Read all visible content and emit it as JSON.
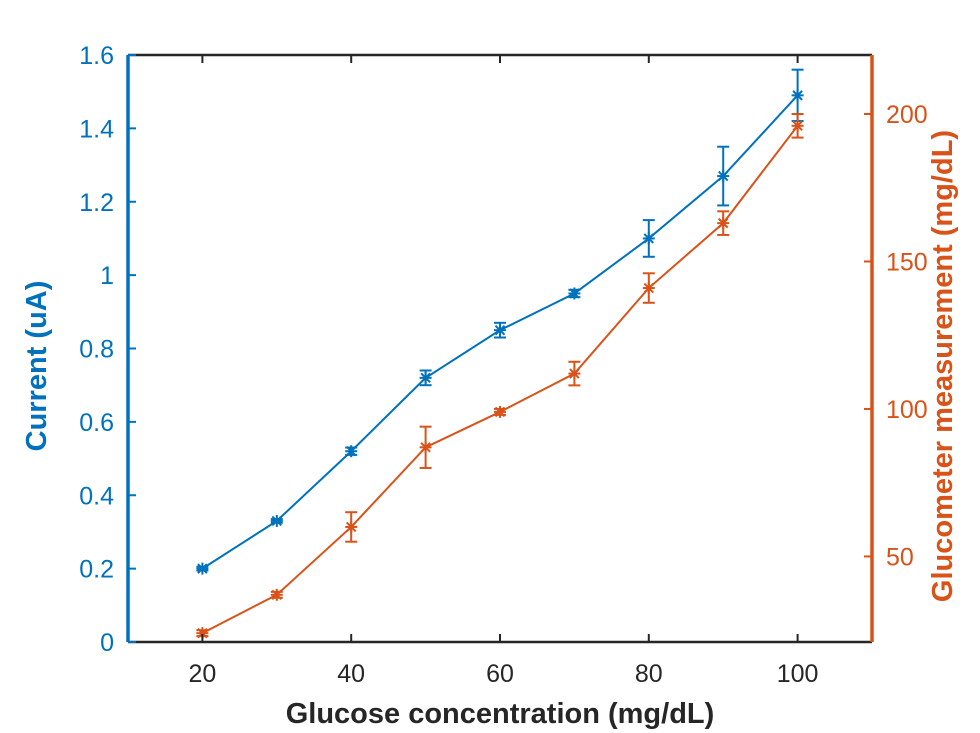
{
  "chart_data": {
    "type": "line",
    "xlabel": "Glucose concentration (mg/dL)",
    "ylabel_left": "Current (uA)",
    "ylabel_right": "Glucometer measurement (mg/dL)",
    "xlim": [
      10,
      110
    ],
    "ylim_left": [
      0,
      1.6
    ],
    "ylim_right": [
      21,
      220
    ],
    "x_ticks": [
      "20",
      "40",
      "60",
      "80",
      "100"
    ],
    "y_left_ticks": [
      "0",
      "0.2",
      "0.4",
      "0.6",
      "0.8",
      "1",
      "1.2",
      "1.4",
      "1.6"
    ],
    "y_right_ticks": [
      "50",
      "100",
      "150",
      "200"
    ],
    "x": [
      20,
      30,
      40,
      50,
      60,
      70,
      80,
      90,
      100
    ],
    "series": [
      {
        "axis": "left",
        "color": "#0072BD",
        "marker": "asterisk",
        "values": [
          0.2,
          0.33,
          0.52,
          0.72,
          0.85,
          0.95,
          1.1,
          1.27,
          1.49
        ],
        "error": [
          0.005,
          0.005,
          0.01,
          0.02,
          0.02,
          0.01,
          0.05,
          0.08,
          0.07
        ]
      },
      {
        "axis": "right",
        "color": "#D95319",
        "marker": "asterisk",
        "values": [
          24,
          37,
          60,
          87,
          99,
          112,
          141,
          163,
          196
        ],
        "error": [
          1,
          1,
          5,
          7,
          1,
          4,
          5,
          4,
          4
        ]
      }
    ],
    "grid": false,
    "legend": false
  }
}
